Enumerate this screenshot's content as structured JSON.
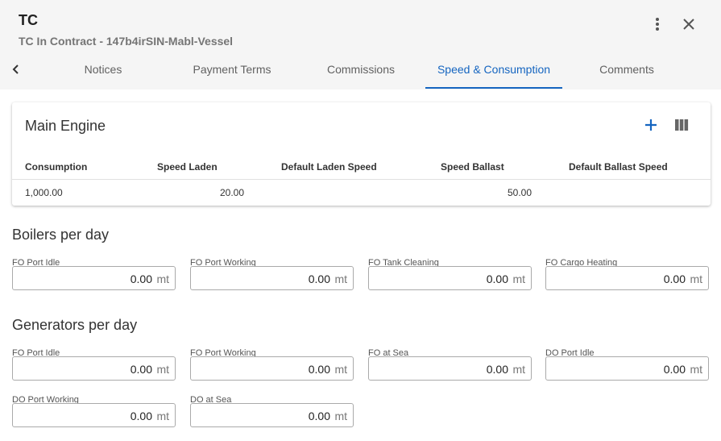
{
  "header": {
    "title": "TC",
    "subtitle": "TC In Contract - 147b4irSIN-Mabl-Vessel"
  },
  "tabs": [
    "Notices",
    "Payment Terms",
    "Commissions",
    "Speed & Consumption",
    "Comments"
  ],
  "main_engine": {
    "title": "Main Engine",
    "columns": [
      "Consumption",
      "Speed Laden",
      "Default Laden Speed",
      "Speed Ballast",
      "Default Ballast Speed"
    ],
    "rows": [
      [
        "1,000.00",
        "20.00",
        null,
        "50.00",
        null
      ]
    ]
  },
  "sections": [
    {
      "title": "Boilers per day",
      "fields": [
        {
          "label": "FO Port Idle",
          "value": "0.00",
          "unit": "mt"
        },
        {
          "label": "FO Port Working",
          "value": "0.00",
          "unit": "mt"
        },
        {
          "label": "FO Tank Cleaning",
          "value": "0.00",
          "unit": "mt"
        },
        {
          "label": "FO Cargo Heating",
          "value": "0.00",
          "unit": "mt"
        }
      ]
    },
    {
      "title": "Generators per day",
      "fields": [
        {
          "label": "FO Port Idle",
          "value": "0.00",
          "unit": "mt"
        },
        {
          "label": "FO Port Working",
          "value": "0.00",
          "unit": "mt"
        },
        {
          "label": "FO at Sea",
          "value": "0.00",
          "unit": "mt"
        },
        {
          "label": "DO Port Idle",
          "value": "0.00",
          "unit": "mt"
        },
        {
          "label": "DO Port Working",
          "value": "0.00",
          "unit": "mt"
        },
        {
          "label": "DO at Sea",
          "value": "0.00",
          "unit": "mt"
        }
      ]
    }
  ]
}
